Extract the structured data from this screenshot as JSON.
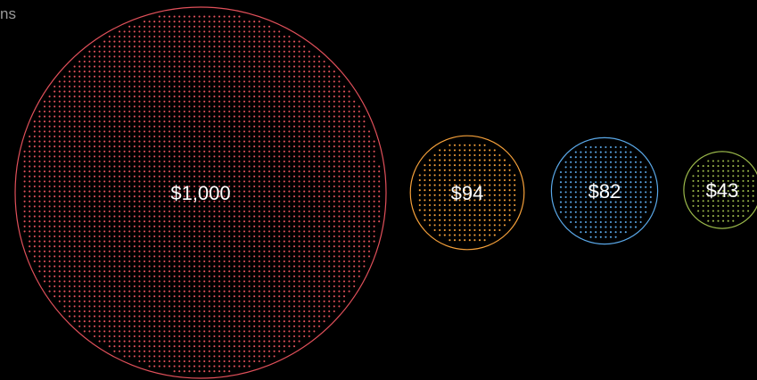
{
  "header": {
    "partial_text": "ns"
  },
  "chart_data": {
    "type": "bubble",
    "title": "",
    "values": [
      1000,
      94,
      82,
      43
    ],
    "labels": [
      "$1,000",
      "$94",
      "$82",
      "$43"
    ],
    "colors": [
      "#e0505a",
      "#f5a03a",
      "#5aa8e8",
      "#9ab84a"
    ],
    "fill_style": "dotted"
  }
}
